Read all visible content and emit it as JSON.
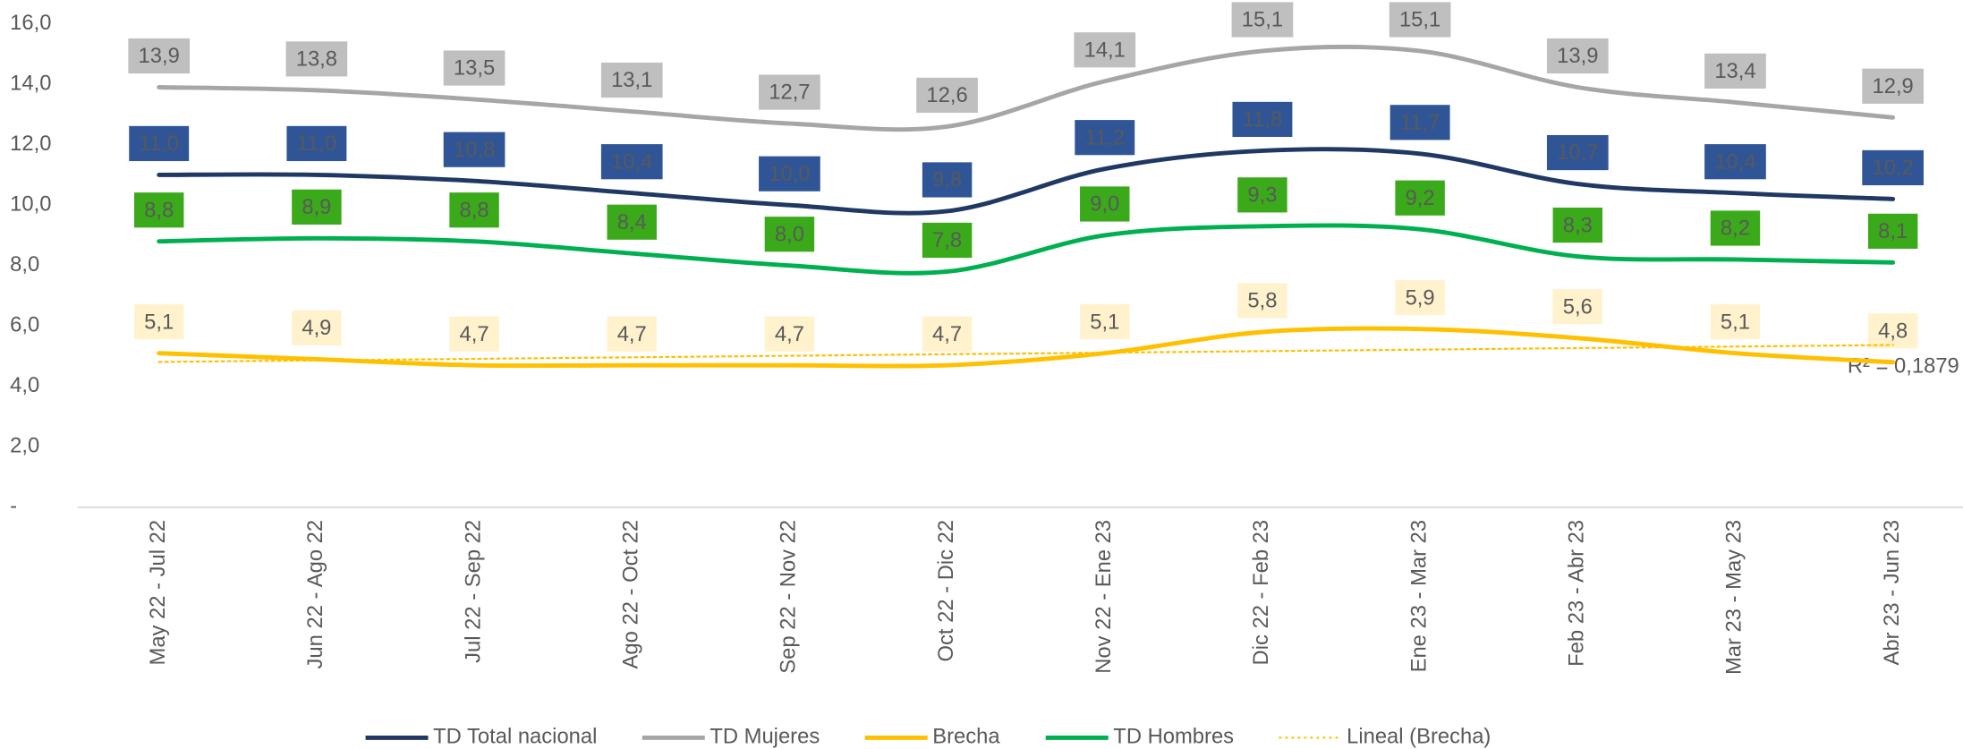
{
  "chart_data": {
    "type": "line",
    "categories": [
      "May 22 - Jul 22",
      "Jun 22 - Ago 22",
      "Jul 22 - Sep 22",
      "Ago 22 - Oct 22",
      "Sep 22 - Nov 22",
      "Oct 22 - Dic 22",
      "Nov 22 - Ene 23",
      "Dic 22 - Feb 23",
      "Ene 23 - Mar 23",
      "Feb 23 - Abr 23",
      "Mar 23 - May 23",
      "Abr 23 - Jun 23"
    ],
    "ylim": [
      0,
      16
    ],
    "yticks": [
      {
        "value": 0,
        "label": "-"
      },
      {
        "value": 2,
        "label": "2,0"
      },
      {
        "value": 4,
        "label": "4,0"
      },
      {
        "value": 6,
        "label": "6,0"
      },
      {
        "value": 8,
        "label": "8,0"
      },
      {
        "value": 10,
        "label": "10,0"
      },
      {
        "value": 12,
        "label": "12,0"
      },
      {
        "value": 14,
        "label": "14,0"
      },
      {
        "value": 16,
        "label": "16,0"
      }
    ],
    "grid": false,
    "legend": "bottom",
    "series": [
      {
        "name": "TD Total nacional",
        "color": "#1f3864",
        "label_color": "#2f5597",
        "label_text_color": "#ffffff",
        "values": [
          11.0,
          11.0,
          10.8,
          10.4,
          10.0,
          9.8,
          11.2,
          11.8,
          11.7,
          10.7,
          10.4,
          10.2
        ],
        "value_labels": [
          "11,0",
          "11,0",
          "10,8",
          "10,4",
          "10,0",
          "9,8",
          "11,2",
          "11,8",
          "11,7",
          "10,7",
          "10,4",
          "10,2"
        ]
      },
      {
        "name": "TD Mujeres",
        "color": "#a6a6a6",
        "label_color": "#bfbfbf",
        "label_text_color": "#404040",
        "values": [
          13.9,
          13.8,
          13.5,
          13.1,
          12.7,
          12.6,
          14.1,
          15.1,
          15.1,
          13.9,
          13.4,
          12.9
        ],
        "value_labels": [
          "13,9",
          "13,8",
          "13,5",
          "13,1",
          "12,7",
          "12,6",
          "14,1",
          "15,1",
          "15,1",
          "13,9",
          "13,4",
          "12,9"
        ]
      },
      {
        "name": "Brecha",
        "color": "#ffc000",
        "label_color": "#fff2cc",
        "label_text_color": "#404040",
        "values": [
          5.1,
          4.9,
          4.7,
          4.7,
          4.7,
          4.7,
          5.1,
          5.8,
          5.9,
          5.6,
          5.1,
          4.8
        ],
        "value_labels": [
          "5,1",
          "4,9",
          "4,7",
          "4,7",
          "4,7",
          "4,7",
          "5,1",
          "5,8",
          "5,9",
          "5,6",
          "5,1",
          "4,8"
        ]
      },
      {
        "name": "TD Hombres",
        "color": "#00b050",
        "label_color": "#3aaa1a",
        "label_text_color": "#ffffff",
        "values": [
          8.8,
          8.9,
          8.8,
          8.4,
          8.0,
          7.8,
          9.0,
          9.3,
          9.2,
          8.3,
          8.2,
          8.1
        ],
        "value_labels": [
          "8,8",
          "8,9",
          "8,8",
          "8,4",
          "8,0",
          "7,8",
          "9,0",
          "9,3",
          "9,2",
          "8,3",
          "8,2",
          "8,1"
        ]
      },
      {
        "name": "Lineal (Brecha)",
        "color": "#ffc000",
        "dash": "dotted",
        "values": [
          4.81,
          4.86,
          4.91,
          4.96,
          5.01,
          5.07,
          5.12,
          5.17,
          5.22,
          5.27,
          5.32,
          5.37
        ]
      }
    ],
    "annotations": [
      "R² = 0,1879"
    ]
  }
}
